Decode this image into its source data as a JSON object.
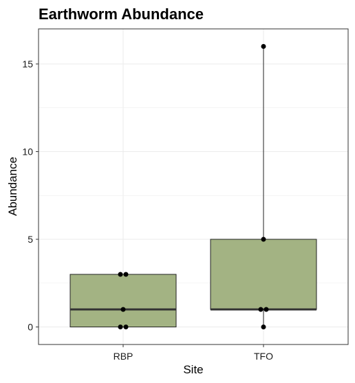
{
  "chart_data": {
    "type": "boxplot",
    "title": "Earthworm Abundance",
    "xlabel": "Site",
    "ylabel": "Abundance",
    "categories": [
      "RBP",
      "TFO"
    ],
    "ylim": [
      -1,
      17
    ],
    "yticks": [
      0,
      5,
      10,
      15
    ],
    "yticks_labels": [
      "0",
      "5",
      "10",
      "15"
    ],
    "grid": true,
    "boxes": [
      {
        "category": "RBP",
        "min": 0,
        "q1": 0,
        "median": 1,
        "q3": 3,
        "max": 3
      },
      {
        "category": "TFO",
        "min": 0,
        "q1": 1,
        "median": 1,
        "q3": 5,
        "max": 16
      }
    ],
    "points": [
      {
        "category": "RBP",
        "values": [
          3,
          3,
          1,
          0,
          0
        ]
      },
      {
        "category": "TFO",
        "values": [
          16,
          5,
          1,
          1,
          0
        ]
      }
    ],
    "colors": {
      "box_fill": "#a3b383",
      "box_stroke": "#222222",
      "median": "#333333",
      "point": "#000000",
      "grid": "#ebebeb",
      "panel_border": "#333333"
    }
  }
}
